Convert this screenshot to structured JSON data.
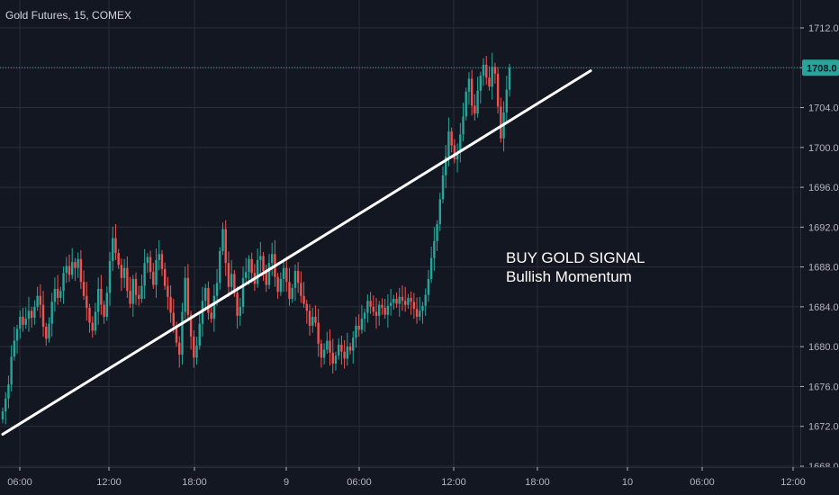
{
  "header": {
    "symbol_title": "Gold Futures, 15, COMEX"
  },
  "annotation": {
    "line1": "BUY GOLD SIGNAL",
    "line2": "Bullish Momentum"
  },
  "colors": {
    "background": "#131722",
    "grid": "#2a2e39",
    "up_candle": "#26a69a",
    "down_candle": "#ef5350",
    "price_line": "#26a69a",
    "trend_line": "#ffffff",
    "axis_text": "#b2b5be"
  },
  "chart_data": {
    "type": "candlestick",
    "title": "Gold Futures, 15, COMEX",
    "x_tick_labels": [
      "06:00",
      "12:00",
      "18:00",
      "9",
      "06:00",
      "12:00",
      "18:00",
      "10",
      "06:00",
      "12:00"
    ],
    "y_tick_labels": [
      "1712.0",
      "1708.0",
      "1704.0",
      "1700.0",
      "1696.0",
      "1692.0",
      "1688.0",
      "1684.0",
      "1680.0",
      "1676.0",
      "1672.0",
      "1668.0"
    ],
    "ylim": [
      1667.5,
      1714.0
    ],
    "last_price": 1708.0,
    "grid": true,
    "series": [
      {
        "name": "Gold Futures",
        "description": "15-minute OHLC bars (approximate closes read from chart)",
        "closes": [
          1673.5,
          1674.8,
          1676.2,
          1679.0,
          1680.6,
          1681.8,
          1683.0,
          1682.2,
          1682.8,
          1683.6,
          1682.9,
          1684.0,
          1685.1,
          1684.2,
          1682.0,
          1680.8,
          1682.3,
          1684.5,
          1685.8,
          1684.9,
          1685.6,
          1687.4,
          1688.1,
          1687.2,
          1688.5,
          1687.9,
          1688.8,
          1686.5,
          1685.1,
          1683.9,
          1682.4,
          1681.6,
          1683.5,
          1685.8,
          1684.2,
          1683.0,
          1685.4,
          1688.6,
          1690.9,
          1689.4,
          1688.2,
          1686.9,
          1687.9,
          1685.6,
          1684.3,
          1686.8,
          1685.2,
          1684.8,
          1686.1,
          1688.4,
          1689.0,
          1687.5,
          1686.2,
          1688.7,
          1689.3,
          1687.8,
          1686.1,
          1685.0,
          1683.4,
          1682.1,
          1680.4,
          1679.2,
          1683.5,
          1686.9,
          1683.2,
          1681.0,
          1678.9,
          1680.1,
          1682.3,
          1684.6,
          1685.9,
          1683.4,
          1682.8,
          1685.1,
          1686.4,
          1689.6,
          1691.8,
          1688.4,
          1686.0,
          1687.3,
          1685.4,
          1683.1,
          1684.0,
          1686.9,
          1687.5,
          1688.8,
          1687.4,
          1686.3,
          1688.7,
          1689.1,
          1687.6,
          1686.2,
          1688.4,
          1689.3,
          1687.0,
          1685.5,
          1686.8,
          1687.9,
          1686.5,
          1684.8,
          1685.9,
          1687.6,
          1686.4,
          1685.1,
          1684.3,
          1683.6,
          1682.1,
          1683.0,
          1682.4,
          1680.3,
          1678.9,
          1679.7,
          1680.6,
          1679.4,
          1678.3,
          1679.1,
          1680.2,
          1679.5,
          1678.8,
          1680.0,
          1679.6,
          1680.9,
          1682.1,
          1681.7,
          1682.8,
          1683.4,
          1684.6,
          1684.0,
          1683.5,
          1683.1,
          1684.2,
          1683.9,
          1683.2,
          1684.1,
          1684.4,
          1684.8,
          1684.3,
          1685.0,
          1684.6,
          1684.2,
          1684.9,
          1684.5,
          1683.8,
          1683.0,
          1683.6,
          1684.1,
          1685.2,
          1686.8,
          1688.9,
          1690.6,
          1692.3,
          1694.8,
          1697.2,
          1699.1,
          1701.6,
          1700.2,
          1698.8,
          1699.5,
          1701.3,
          1703.1,
          1705.6,
          1706.9,
          1704.2,
          1703.4,
          1705.7,
          1707.2,
          1708.3,
          1707.0,
          1706.1,
          1708.1,
          1707.4,
          1704.1,
          1700.9,
          1703.5,
          1705.8,
          1708.0
        ]
      }
    ],
    "trend_line": {
      "from": {
        "x_index": 0,
        "y": 1671.2
      },
      "to": {
        "x_index": 203,
        "y": 1707.7
      }
    }
  }
}
